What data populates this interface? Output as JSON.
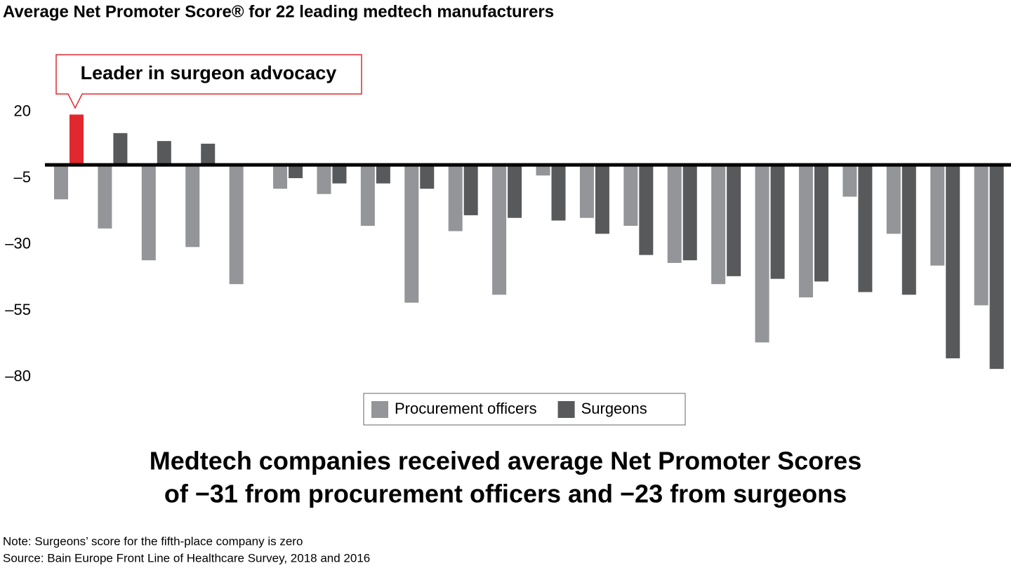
{
  "chart_data": {
    "type": "bar",
    "title": "Average Net Promoter Score® for 22 leading medtech manufacturers",
    "annotation": "Leader in surgeon advocacy",
    "headline": [
      "Medtech companies received average Net Promoter Scores",
      "of −31 from procurement officers and −23 from surgeons"
    ],
    "notes": [
      "Note: Surgeons’ score for the fifth-place company is zero",
      "Source: Bain Europe Front Line of Healthcare Survey, 2018 and 2016"
    ],
    "series": [
      {
        "name": "Procurement officers",
        "color": "#939598",
        "values": [
          -13,
          -24,
          -36,
          -31,
          -45,
          -9,
          -11,
          -23,
          -52,
          -25,
          -49,
          -4,
          -20,
          -23,
          -37,
          -45,
          -67,
          -50,
          -12,
          -26,
          -38,
          -53
        ]
      },
      {
        "name": "Surgeons",
        "color": "#58595b",
        "values": [
          19,
          12,
          9,
          8,
          0,
          -5,
          -7,
          -7,
          -9,
          -19,
          -20,
          -21,
          -26,
          -34,
          -36,
          -42,
          -43,
          -44,
          -48,
          -49,
          -73,
          -77
        ]
      }
    ],
    "highlight": {
      "series": 1,
      "index": 0,
      "color": "#e0282e"
    },
    "accent_color": "#e0282e",
    "ylim": [
      -82,
      40
    ],
    "yticks": [
      20,
      {
        "value": -5,
        "label": "–5"
      },
      {
        "value": -30,
        "label": "–30"
      },
      {
        "value": -55,
        "label": "–55"
      },
      {
        "value": -80,
        "label": "–80"
      }
    ],
    "legend": "bottom"
  }
}
